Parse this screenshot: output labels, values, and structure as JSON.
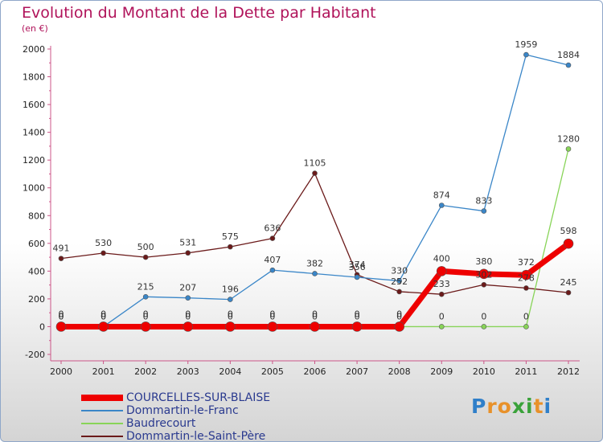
{
  "chart_data": {
    "type": "line",
    "title": "Evolution du Montant de la Dette par Habitant",
    "subtitle": "(en €)",
    "x": [
      "2000",
      "2001",
      "2002",
      "2003",
      "2004",
      "2005",
      "2006",
      "2007",
      "2008",
      "2009",
      "2010",
      "2011",
      "2012"
    ],
    "ylim": [
      -200,
      2000
    ],
    "yticks": [
      -200,
      0,
      200,
      400,
      600,
      800,
      1000,
      1200,
      1400,
      1600,
      1800,
      2000
    ],
    "grid": false,
    "legend_position": "bottom-left",
    "series": [
      {
        "name": "Dommartin-le-Saint-Père",
        "color": "#6b1a1a",
        "values": [
          491,
          530,
          500,
          531,
          575,
          636,
          1105,
          374,
          252,
          233,
          302,
          278,
          245
        ]
      },
      {
        "name": "Dommartin-le-Franc",
        "color": "#3a86c8",
        "values": [
          0,
          0,
          215,
          207,
          196,
          407,
          382,
          356,
          330,
          874,
          833,
          1959,
          1884
        ]
      },
      {
        "name": "Baudrecourt",
        "color": "#88d458",
        "values": [
          0,
          0,
          0,
          0,
          0,
          0,
          0,
          0,
          0,
          0,
          0,
          0,
          1280
        ]
      },
      {
        "name": "COURCELLES-SUR-BLAISE",
        "color": "#ee0000",
        "values": [
          0,
          0,
          0,
          0,
          0,
          0,
          0,
          0,
          0,
          400,
          380,
          372,
          598
        ]
      }
    ],
    "data_label_text": {
      "Dommartin-le-Saint-Père": [
        "491",
        "530",
        "500",
        "531",
        "575",
        "636",
        "1105",
        "374",
        "252",
        "233",
        "302",
        "278",
        "245"
      ],
      "Dommartin-le-Franc": [
        "0",
        "0",
        "215",
        "207",
        "196",
        "407",
        "382",
        "356",
        "330",
        "874",
        "833",
        "1959",
        "1884"
      ],
      "Baudrecourt": [
        "0",
        "0",
        "0",
        "0",
        "0",
        "0",
        "0",
        "0",
        "0",
        "0",
        "0",
        "0",
        "1280"
      ],
      "COURCELLES-SUR-BLAISE": [
        "0",
        "0",
        "0",
        "0",
        "0",
        "0",
        "0",
        "0",
        "0",
        "400",
        "380",
        "372",
        "598"
      ]
    }
  },
  "legend": [
    {
      "label": "COURCELLES-SUR-BLAISE",
      "color": "#ee0000"
    },
    {
      "label": "Dommartin-le-Franc",
      "color": "#3a86c8"
    },
    {
      "label": "Baudrecourt",
      "color": "#88d458"
    },
    {
      "label": "Dommartin-le-Saint-Père",
      "color": "#6b1a1a"
    }
  ],
  "logo": {
    "text": "Proxiti",
    "letters": [
      "P",
      "r",
      "o",
      "x",
      "i",
      "t",
      "i"
    ],
    "colors": [
      "#2f7fc9",
      "#e8912a",
      "#e8912a",
      "#3aa23a",
      "#3aa23a",
      "#e8912a",
      "#2f7fc9"
    ]
  }
}
